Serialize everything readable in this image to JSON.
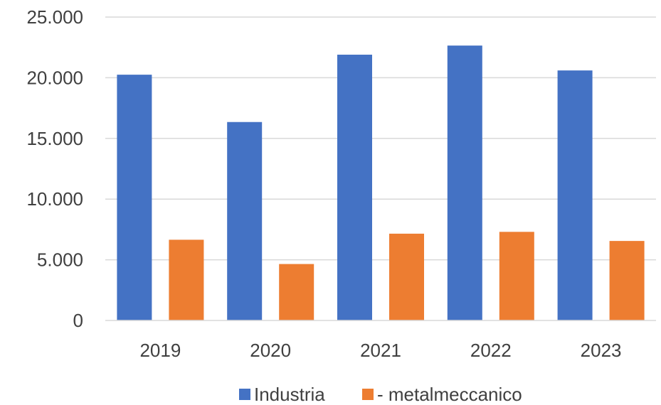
{
  "chart_data": {
    "type": "bar",
    "categories": [
      "2019",
      "2020",
      "2021",
      "2022",
      "2023"
    ],
    "series": [
      {
        "name": "Industria",
        "color": "#4472c4",
        "values": [
          20250,
          16350,
          21900,
          22650,
          20600
        ]
      },
      {
        "name": "- metalmeccanico",
        "color": "#ed7d31",
        "values": [
          6650,
          4650,
          7150,
          7300,
          6550
        ]
      }
    ],
    "yticks": [
      0,
      5000,
      10000,
      15000,
      20000,
      25000
    ],
    "ytick_labels": [
      "0",
      "5.000",
      "10.000",
      "15.000",
      "20.000",
      "25.000"
    ],
    "ylim": [
      0,
      25000
    ],
    "grid": true,
    "legend_position": "bottom",
    "title": "",
    "xlabel": "",
    "ylabel": ""
  }
}
